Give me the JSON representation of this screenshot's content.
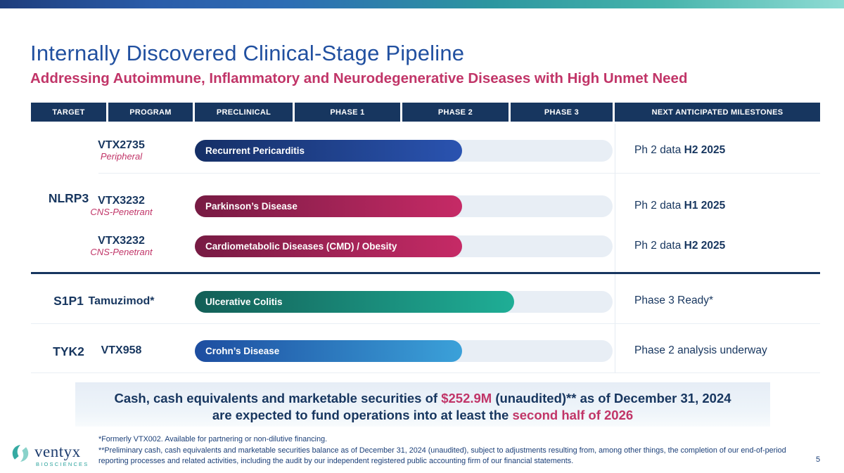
{
  "slide": {
    "title": "Internally Discovered Clinical-Stage Pipeline",
    "subtitle": "Addressing Autoimmune, Inflammatory and Neurodegenerative Diseases with High Unmet Need",
    "page_number": "5"
  },
  "colors": {
    "navy": "#17365f",
    "title_blue": "#2150a0",
    "magenta": "#c13568",
    "teal": "#2ba39d",
    "track": "#e8eef5"
  },
  "table": {
    "headers": [
      "TARGET",
      "PROGRAM",
      "PRECLINICAL",
      "PHASE 1",
      "PHASE 2",
      "PHASE 3",
      "NEXT ANTICIPATED MILESTONES"
    ],
    "targets": [
      {
        "label": "NLRP3"
      },
      {
        "label": "S1P1"
      },
      {
        "label": "TYK2"
      }
    ],
    "rows": [
      {
        "program": "VTX2735",
        "program_sub": "Peripheral",
        "indication": "Recurrent Pericarditis",
        "milestone": "Ph 2 data ",
        "milestone_bold": "H2 2025",
        "fill_width": 380,
        "grad": {
          "from": "#152f66",
          "to": "#2a53b0"
        }
      },
      {
        "program": "VTX3232",
        "program_sub": "CNS-Penetrant",
        "indication": "Parkinson’s Disease",
        "milestone": "Ph 2 data ",
        "milestone_bold": "H1 2025",
        "fill_width": 380,
        "grad": {
          "from": "#771b43",
          "to": "#c62a66"
        }
      },
      {
        "program": "VTX3232",
        "program_sub": "CNS-Penetrant",
        "indication": "Cardiometabolic Diseases (CMD) / Obesity",
        "milestone": "Ph 2 data ",
        "milestone_bold": "H2 2025",
        "fill_width": 380,
        "grad": {
          "from": "#771b43",
          "to": "#c62a66"
        }
      },
      {
        "program": "Tamuzimod*",
        "program_sub": "",
        "indication": "Ulcerative Colitis",
        "milestone": "Phase 3 Ready*",
        "milestone_bold": "",
        "fill_width": 454,
        "grad": {
          "from": "#135f57",
          "to": "#1fae96"
        }
      },
      {
        "program": "VTX958",
        "program_sub": "",
        "indication": "Crohn’s Disease",
        "milestone": "Phase 2 analysis underway",
        "milestone_bold": "",
        "fill_width": 380,
        "grad": {
          "from": "#1d4da0",
          "to": "#3ba1d9"
        }
      }
    ]
  },
  "cash_banner": {
    "line1_pre": "Cash, cash equivalents and marketable securities of ",
    "line1_hl1": "$252.9M",
    "line1_mid": " (unaudited)** as of December 31, 2024",
    "line2_pre": "are expected to fund operations into at least the ",
    "line2_hl": "second half of 2026"
  },
  "footnotes": {
    "note1": "*Formerly VTX002. Available for partnering or non-dilutive financing.",
    "note2": "**Preliminary cash, cash equivalents and marketable securities balance as of December 31, 2024 (unaudited), subject to adjustments resulting from, among other things, the completion of our end-of-period reporting processes and related activities, including the audit by our independent registered public accounting firm of our financial statements."
  },
  "logo": {
    "name": "ventyx",
    "sub": "BIOSCIENCES"
  }
}
